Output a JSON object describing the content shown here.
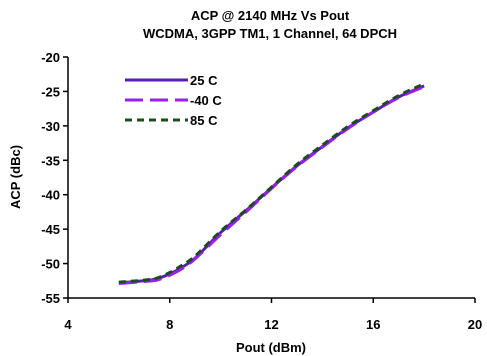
{
  "chart_data": {
    "type": "line",
    "title_lines": [
      "ACP @ 2140  MHz Vs Pout",
      "WCDMA, 3GPP TM1, 1 Channel, 64 DPCH"
    ],
    "xlabel": "Pout (dBm)",
    "ylabel": "ACP (dBc)",
    "xlim": [
      4,
      20
    ],
    "ylim": [
      -55,
      -20
    ],
    "xticks": [
      4,
      8,
      12,
      16,
      20
    ],
    "yticks": [
      -20,
      -25,
      -30,
      -35,
      -40,
      -45,
      -50,
      -55
    ],
    "grid": false,
    "legend_position": "top-left",
    "series": [
      {
        "name": "25 C",
        "color": "#5a1fb0",
        "dash": "solid",
        "x": [
          6,
          7,
          7.5,
          8,
          8.5,
          9,
          10,
          11,
          12,
          13,
          14,
          15,
          16,
          17,
          18
        ],
        "y": [
          -52.8,
          -52.5,
          -52.2,
          -51.5,
          -50.5,
          -49.2,
          -45.5,
          -42.3,
          -39,
          -35.8,
          -33,
          -30.3,
          -28,
          -25.8,
          -24.2
        ]
      },
      {
        "name": "-40 C",
        "color": "#9a1ff0",
        "dash": "long-dash",
        "x": [
          6,
          7,
          7.5,
          8,
          8.5,
          9,
          10,
          11,
          12,
          13,
          14,
          15,
          16,
          17,
          18
        ],
        "y": [
          -52.9,
          -52.6,
          -52.4,
          -51.7,
          -50.7,
          -49.3,
          -45.8,
          -42.5,
          -39.1,
          -35.9,
          -33.1,
          -30.4,
          -28,
          -25.9,
          -24.3
        ]
      },
      {
        "name": "85 C",
        "color": "#1a4d1a",
        "dash": "dashed",
        "x": [
          6,
          7,
          7.5,
          8,
          8.5,
          9,
          10,
          11,
          12,
          13,
          14,
          15,
          16,
          17,
          18
        ],
        "y": [
          -52.7,
          -52.4,
          -52.1,
          -51.3,
          -50.2,
          -48.9,
          -45.3,
          -42.2,
          -38.9,
          -35.6,
          -32.8,
          -30.1,
          -27.8,
          -25.6,
          -23.9
        ]
      }
    ]
  }
}
